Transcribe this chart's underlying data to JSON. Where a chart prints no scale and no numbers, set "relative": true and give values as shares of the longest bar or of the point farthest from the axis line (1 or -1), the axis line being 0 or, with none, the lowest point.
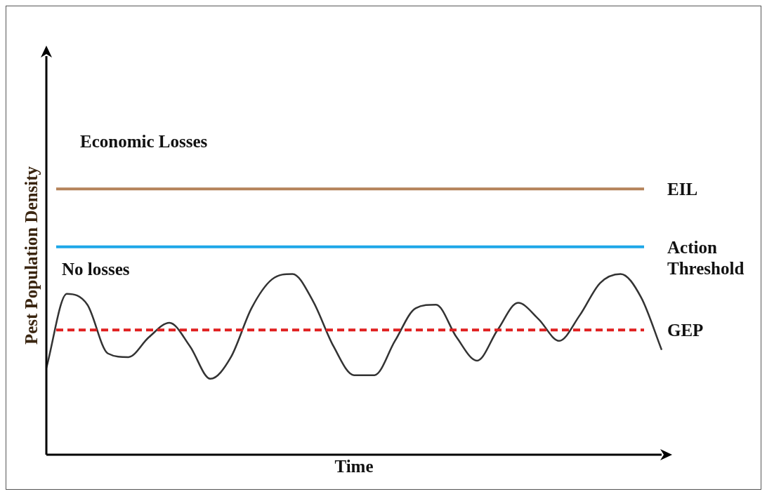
{
  "chart_data": {
    "type": "line",
    "relative": true,
    "xlabel": "Time",
    "ylabel": "Pest Population Density",
    "categories": [
      null,
      null,
      null,
      null,
      null,
      null,
      null,
      null,
      null,
      null,
      null,
      null,
      null,
      null,
      null,
      null,
      null,
      null,
      null,
      null,
      null,
      null,
      null,
      null,
      null,
      null,
      null,
      null,
      null,
      null,
      null
    ],
    "series": [
      {
        "color": "#333333",
        "values": [
          0.48,
          0.89,
          0.83,
          0.56,
          0.54,
          0.65,
          0.73,
          0.6,
          0.42,
          0.54,
          0.81,
          0.97,
          1,
          0.85,
          0.6,
          0.44,
          0.44,
          0.63,
          0.81,
          0.83,
          0.65,
          0.52,
          0.69,
          0.84,
          0.75,
          0.63,
          0.77,
          0.95,
          1,
          0.87,
          0.58
        ]
      }
    ],
    "ref_lines": [
      {
        "axis": "y",
        "value": 1.47,
        "label": "EIL",
        "color": "#b5835a",
        "line_style": "solid"
      },
      {
        "axis": "y",
        "value": 1.15,
        "label": "Action Threshold",
        "color": "#1ea7e8",
        "line_style": "solid"
      },
      {
        "axis": "y",
        "value": 0.69,
        "label": "GEP",
        "color": "#e02020",
        "line_style": "dashed"
      }
    ],
    "annotations": [
      "Economic Losses",
      "No losses"
    ],
    "marker": "none"
  }
}
